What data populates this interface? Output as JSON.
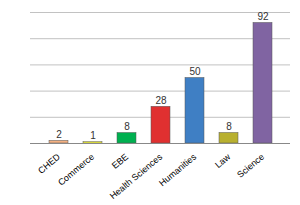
{
  "chart_data": {
    "type": "bar",
    "categories": [
      "CHED",
      "Commerce",
      "EBE",
      "Health Sciences",
      "Humanities",
      "Law",
      "Science"
    ],
    "values": [
      2,
      1,
      8,
      28,
      50,
      8,
      92
    ],
    "colors": [
      "#f4b183",
      "#ffff33",
      "#00b050",
      "#e03030",
      "#3f7fc4",
      "#b8b030",
      "#8064a2"
    ],
    "ylim": [
      0,
      100
    ],
    "yticks": [
      0,
      20,
      40,
      60,
      80,
      100
    ],
    "grid": true,
    "data_labels": true,
    "tick_labels": "x"
  }
}
